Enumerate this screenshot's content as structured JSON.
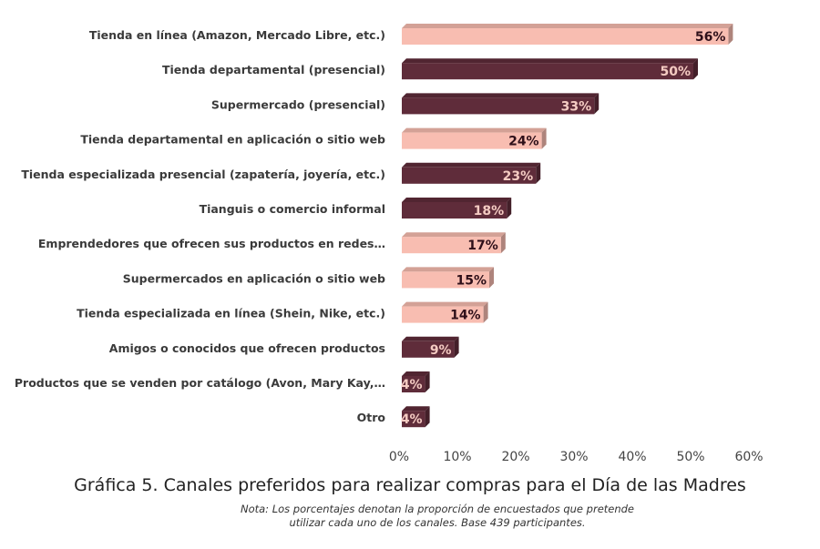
{
  "chart_data": {
    "type": "bar",
    "orientation": "horizontal",
    "title": "Gráfica 5. Canales preferidos para realizar compras para el Día de las Madres",
    "note": "Nota: Los porcentajes denotan la proporción de encuestados que pretende utilizar cada uno de los canales. Base 439 participantes.",
    "categories": [
      "Tienda en línea (Amazon, Mercado Libre, etc.)",
      "Tienda departamental (presencial)",
      "Supermercado (presencial)",
      "Tienda departamental en aplicación o sitio web",
      "Tienda especializada presencial (zapatería, joyería, etc.)",
      "Tianguis o comercio informal",
      "Emprendedores que ofrecen sus productos en redes…",
      "Supermercados en aplicación o sitio web",
      "Tienda especializada en línea (Shein, Nike, etc.)",
      "Amigos o conocidos que ofrecen productos",
      "Productos que se venden por catálogo (Avon, Mary Kay,…",
      "Otro"
    ],
    "values": [
      56,
      50,
      33,
      24,
      23,
      18,
      17,
      15,
      14,
      9,
      4,
      4
    ],
    "value_labels": [
      "56%",
      "50%",
      "33%",
      "24%",
      "23%",
      "18%",
      "17%",
      "15%",
      "14%",
      "9%",
      "4%",
      "4%"
    ],
    "bar_colors": [
      "#f8bdb1",
      "#5f2c3a",
      "#5f2c3a",
      "#f8bdb1",
      "#5f2c3a",
      "#5f2c3a",
      "#f8bdb1",
      "#f8bdb1",
      "#f8bdb1",
      "#5f2c3a",
      "#5f2c3a",
      "#5f2c3a"
    ],
    "xlim": [
      0,
      60
    ],
    "xticks": [
      "0%",
      "10%",
      "20%",
      "30%",
      "40%",
      "50%",
      "60%"
    ],
    "grid": false,
    "style": "3d-bars"
  }
}
